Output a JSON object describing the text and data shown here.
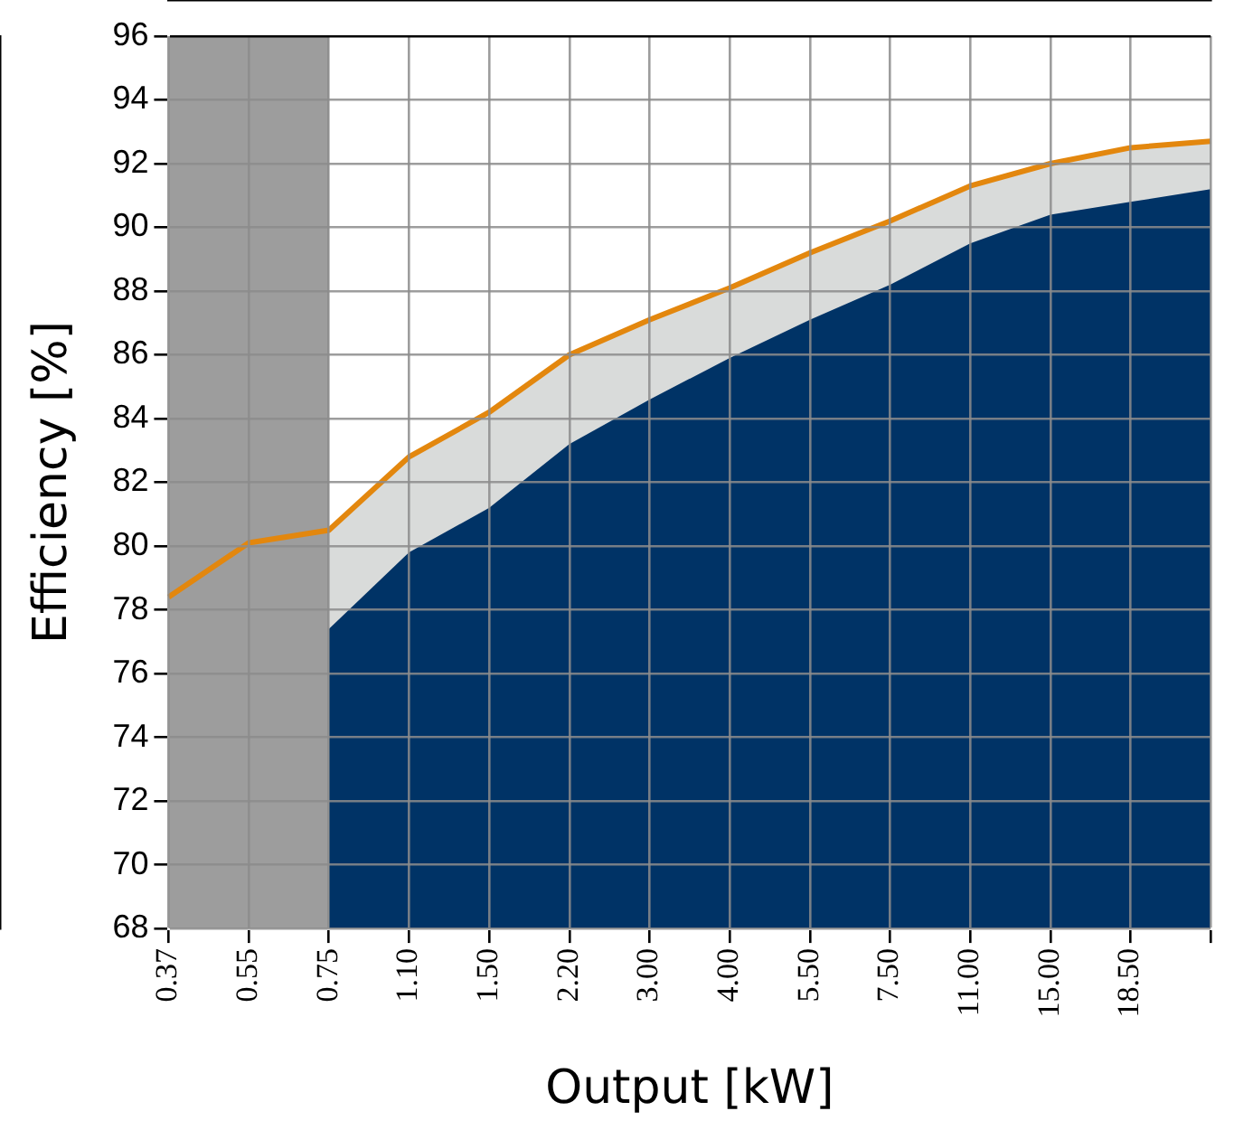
{
  "chart_data": {
    "type": "area",
    "xlabel": "Output [kW]",
    "ylabel": "Efficiency [%]",
    "categories": [
      "0.37",
      "0.55",
      "0.75",
      "1.10",
      "1.50",
      "2.20",
      "3.00",
      "4.00",
      "5.50",
      "7.50",
      "11.00",
      "15.00",
      "18.50",
      null
    ],
    "series": [
      {
        "type": "area",
        "color": "#d9dbda",
        "values": [
          null,
          null,
          80.5,
          82.8,
          84.2,
          86.0,
          87.1,
          88.1,
          89.2,
          90.2,
          91.3,
          92.0,
          92.5,
          92.7
        ]
      },
      {
        "type": "area",
        "color": "#003366",
        "values": [
          null,
          null,
          77.4,
          79.8,
          81.2,
          83.2,
          84.6,
          85.9,
          87.1,
          88.2,
          89.5,
          90.4,
          90.8,
          91.2
        ]
      },
      {
        "type": "line",
        "color": "#e3870e",
        "values": [
          78.4,
          80.1,
          80.5,
          82.8,
          84.2,
          86.0,
          87.1,
          88.1,
          89.2,
          90.2,
          91.3,
          92.0,
          92.5,
          92.7
        ]
      }
    ],
    "bands": [
      {
        "axis": "x",
        "from": "0.37",
        "to": "0.75",
        "color": "#9d9d9d"
      }
    ],
    "ylim": [
      68,
      96
    ],
    "yticks": [
      68,
      70,
      72,
      74,
      76,
      78,
      80,
      82,
      84,
      86,
      88,
      90,
      92,
      94,
      96
    ],
    "grid": true,
    "legend": false,
    "marker": "none",
    "line_style": "solid"
  }
}
